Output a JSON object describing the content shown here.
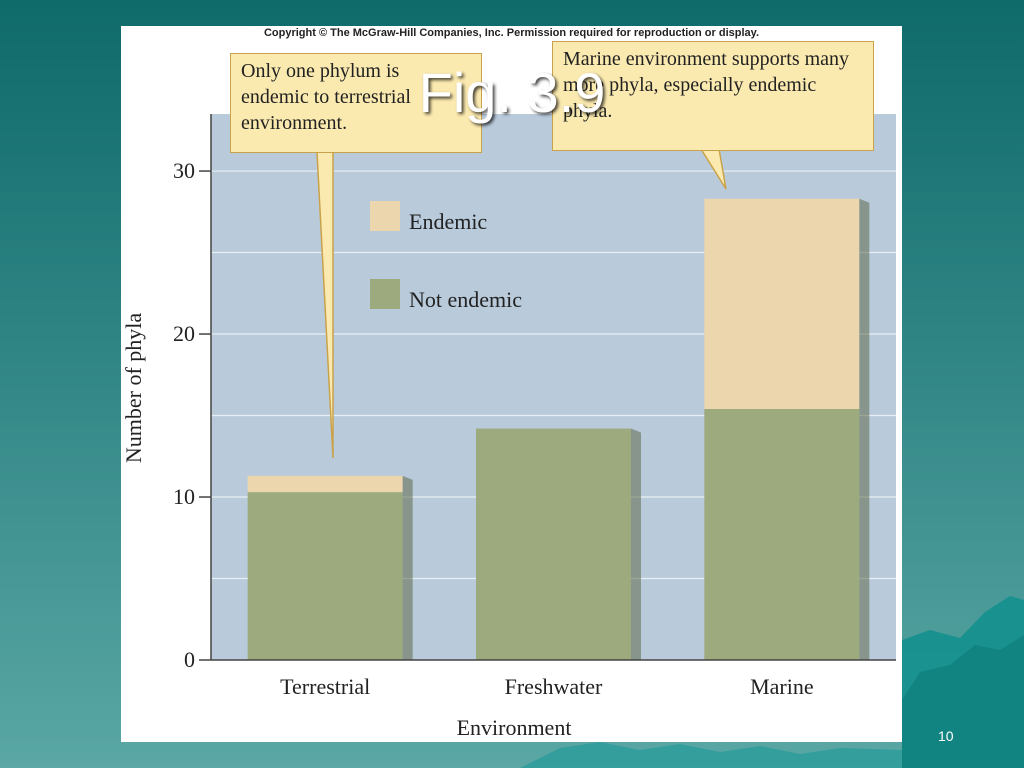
{
  "slide": {
    "title": "Fig. 3.9",
    "page_number": "10",
    "copyright": "Copyright © The McGraw-Hill Companies, Inc. Permission required for reproduction or display."
  },
  "callouts": {
    "left": "Only one phylum is endemic to terrestrial environment.",
    "right": "Marine environment supports many more phyla, especially endemic phyla."
  },
  "colors": {
    "not_endemic": "#9caa7d",
    "endemic": "#ecd6ad",
    "plot_bg": "#b9cbdb",
    "gridline": "#e8eef4"
  },
  "chart_data": {
    "type": "bar",
    "stacked": true,
    "categories": [
      "Terrestrial",
      "Freshwater",
      "Marine"
    ],
    "series": [
      {
        "name": "Not endemic",
        "values": [
          10.3,
          14.2,
          15.4
        ]
      },
      {
        "name": "Endemic",
        "values": [
          1.0,
          0,
          12.9
        ]
      }
    ],
    "xlabel": "Environment",
    "ylabel": "Number of phyla",
    "ylim": [
      0,
      33.5
    ],
    "yticks": [
      0,
      10,
      20,
      30
    ],
    "grid": true,
    "legend": "top-center"
  }
}
